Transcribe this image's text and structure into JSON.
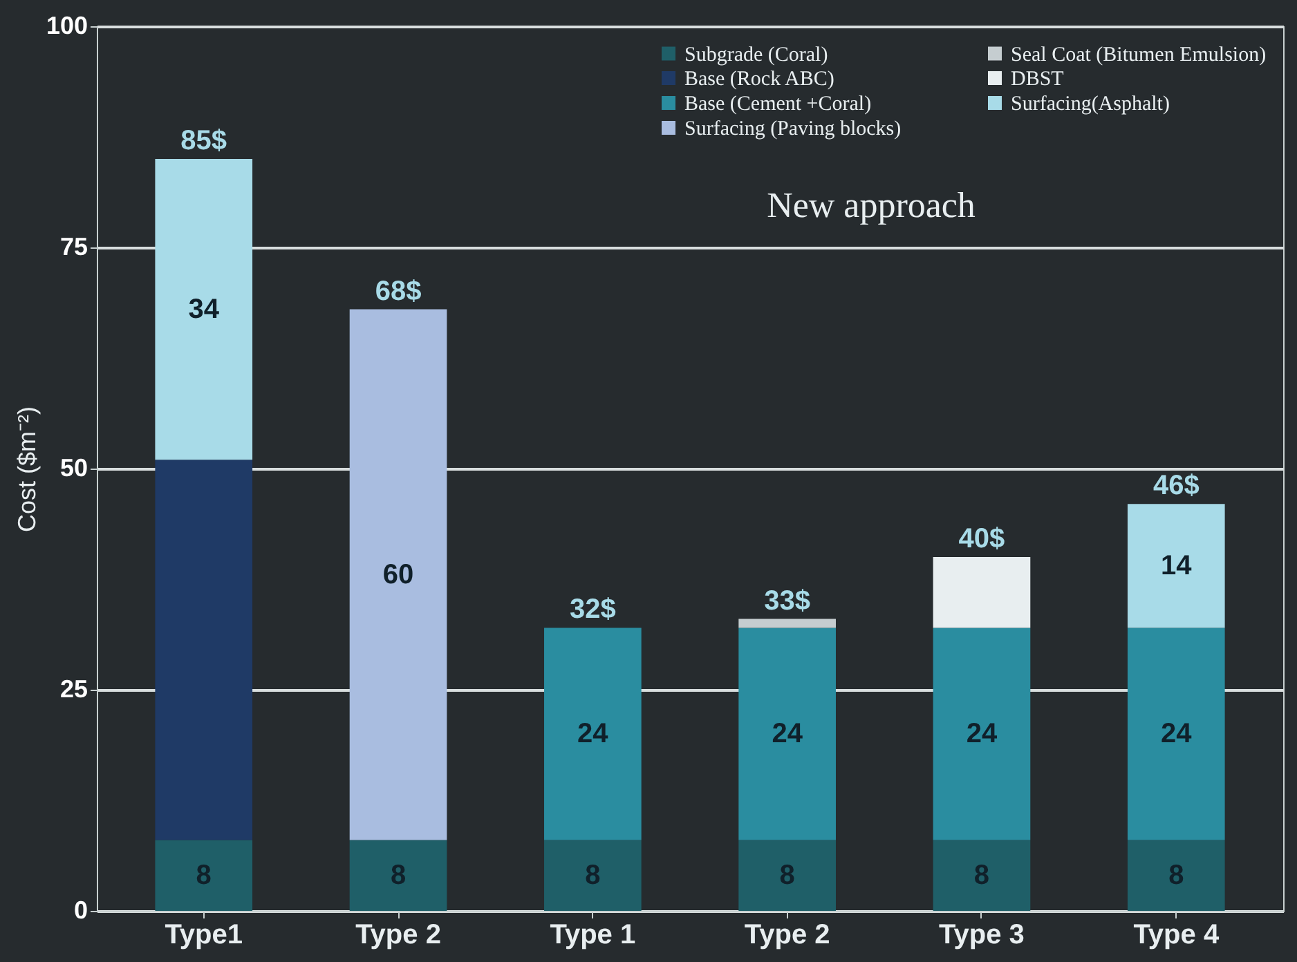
{
  "chart_data": {
    "type": "bar",
    "stacked": true,
    "categories": [
      "Type1",
      "Type 2",
      "Type 1",
      "Type 2",
      "Type 3",
      "Type 4"
    ],
    "ylabel": "Cost ($m⁻²)",
    "ylim": [
      0,
      100
    ],
    "yticks": [
      0,
      25,
      50,
      75,
      100
    ],
    "grid": "y",
    "legend": "top right",
    "series": [
      {
        "name": "Subgrade (Coral)",
        "color": "#1f5f68",
        "values": [
          8,
          8,
          8,
          8,
          8,
          8
        ],
        "value_labels": [
          "8",
          "8",
          "8",
          "8",
          "8",
          "8"
        ]
      },
      {
        "name": "Base (Rock ABC)",
        "color": "#1f3a66",
        "values": [
          43,
          null,
          null,
          null,
          null,
          null
        ]
      },
      {
        "name": "Base (Cement +Coral)",
        "color": "#2a8da0",
        "values": [
          null,
          null,
          24,
          24,
          24,
          24
        ],
        "value_labels": [
          null,
          null,
          "24",
          "24",
          "24",
          "24"
        ]
      },
      {
        "name": "Surfacing (Paving blocks)",
        "color": "#a9bde0",
        "values": [
          null,
          60,
          null,
          null,
          null,
          null
        ],
        "value_labels": [
          null,
          "60",
          null,
          null,
          null,
          null
        ]
      },
      {
        "name": "Seal Coat (Bitumen Emulsion)",
        "color": "#c5cdd0",
        "values": [
          null,
          null,
          null,
          1,
          null,
          null
        ]
      },
      {
        "name": "DBST",
        "color": "#e8eef0",
        "values": [
          null,
          null,
          null,
          null,
          8,
          null
        ]
      },
      {
        "name": "Surfacing(Asphalt)",
        "color": "#a8dbe8",
        "values": [
          34,
          null,
          null,
          null,
          null,
          14
        ],
        "value_labels": [
          "34",
          null,
          null,
          null,
          null,
          "14"
        ]
      }
    ],
    "totals": [
      "85$",
      "68$",
      "32$",
      "33$",
      "40$",
      "46$"
    ],
    "annotations": [
      "New approach"
    ]
  }
}
